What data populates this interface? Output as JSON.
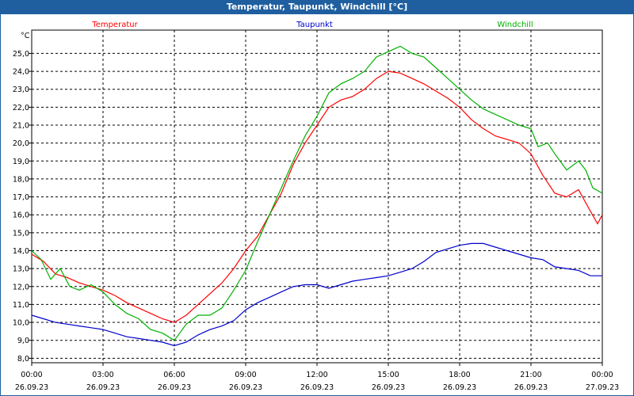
{
  "window": {
    "title": "Temperatur, Taupunkt, Windchill [°C]"
  },
  "chart_data": {
    "type": "line",
    "title": "Temperatur, Taupunkt, Windchill [°C]",
    "ylabel": "°C",
    "ylim": [
      7.75,
      26.3
    ],
    "yticks": [
      "8,0",
      "9,0",
      "10,0",
      "11,0",
      "12,0",
      "13,0",
      "14,0",
      "15,0",
      "16,0",
      "17,0",
      "18,0",
      "19,0",
      "20,0",
      "21,0",
      "22,0",
      "23,0",
      "24,0",
      "25,0"
    ],
    "xlim": [
      0,
      24
    ],
    "xticks": [
      {
        "time": "00:00",
        "date": "26.09.23"
      },
      {
        "time": "03:00",
        "date": "26.09.23"
      },
      {
        "time": "06:00",
        "date": "26.09.23"
      },
      {
        "time": "09:00",
        "date": "26.09.23"
      },
      {
        "time": "12:00",
        "date": "26.09.23"
      },
      {
        "time": "15:00",
        "date": "26.09.23"
      },
      {
        "time": "18:00",
        "date": "26.09.23"
      },
      {
        "time": "21:00",
        "date": "26.09.23"
      },
      {
        "time": "00:00",
        "date": "27.09.23"
      }
    ],
    "grid": true,
    "legend_position": "top",
    "series": [
      {
        "name": "Temperatur",
        "color": "#ff0000",
        "points": [
          [
            0,
            13.8
          ],
          [
            0.5,
            13.4
          ],
          [
            1,
            12.7
          ],
          [
            1.5,
            12.5
          ],
          [
            2,
            12.2
          ],
          [
            2.5,
            12.0
          ],
          [
            3,
            11.8
          ],
          [
            3.5,
            11.5
          ],
          [
            4,
            11.1
          ],
          [
            4.5,
            10.8
          ],
          [
            5,
            10.5
          ],
          [
            5.5,
            10.2
          ],
          [
            6,
            10.0
          ],
          [
            6.5,
            10.4
          ],
          [
            7,
            11.0
          ],
          [
            7.5,
            11.6
          ],
          [
            8,
            12.2
          ],
          [
            8.5,
            13.0
          ],
          [
            9,
            14.0
          ],
          [
            9.5,
            14.8
          ],
          [
            10,
            16.0
          ],
          [
            10.5,
            17.2
          ],
          [
            11,
            18.8
          ],
          [
            11.5,
            20.0
          ],
          [
            12,
            21.0
          ],
          [
            12.5,
            22.0
          ],
          [
            13,
            22.4
          ],
          [
            13.5,
            22.6
          ],
          [
            14,
            23.0
          ],
          [
            14.5,
            23.6
          ],
          [
            15,
            24.0
          ],
          [
            15.5,
            23.9
          ],
          [
            16,
            23.6
          ],
          [
            16.5,
            23.3
          ],
          [
            17,
            22.9
          ],
          [
            17.5,
            22.5
          ],
          [
            18,
            22.0
          ],
          [
            18.5,
            21.3
          ],
          [
            19,
            20.8
          ],
          [
            19.5,
            20.4
          ],
          [
            20,
            20.2
          ],
          [
            20.5,
            20.0
          ],
          [
            21,
            19.4
          ],
          [
            21.5,
            18.2
          ],
          [
            22,
            17.2
          ],
          [
            22.5,
            17.0
          ],
          [
            23,
            17.4
          ],
          [
            23.5,
            16.2
          ],
          [
            23.8,
            15.5
          ],
          [
            24,
            16.0
          ]
        ]
      },
      {
        "name": "Taupunkt",
        "color": "#0000cc",
        "points": [
          [
            0,
            10.4
          ],
          [
            0.5,
            10.2
          ],
          [
            1,
            10.0
          ],
          [
            1.5,
            9.9
          ],
          [
            2,
            9.8
          ],
          [
            2.5,
            9.7
          ],
          [
            3,
            9.6
          ],
          [
            3.5,
            9.4
          ],
          [
            4,
            9.2
          ],
          [
            4.5,
            9.1
          ],
          [
            5,
            9.0
          ],
          [
            5.5,
            8.9
          ],
          [
            6,
            8.7
          ],
          [
            6.5,
            8.9
          ],
          [
            7,
            9.3
          ],
          [
            7.5,
            9.6
          ],
          [
            8,
            9.8
          ],
          [
            8.5,
            10.1
          ],
          [
            9,
            10.7
          ],
          [
            9.5,
            11.1
          ],
          [
            10,
            11.4
          ],
          [
            10.5,
            11.7
          ],
          [
            11,
            12.0
          ],
          [
            11.5,
            12.1
          ],
          [
            12,
            12.1
          ],
          [
            12.5,
            11.9
          ],
          [
            13,
            12.1
          ],
          [
            13.5,
            12.3
          ],
          [
            14,
            12.4
          ],
          [
            14.5,
            12.5
          ],
          [
            15,
            12.6
          ],
          [
            15.5,
            12.8
          ],
          [
            16,
            13.0
          ],
          [
            16.5,
            13.4
          ],
          [
            17,
            13.9
          ],
          [
            17.5,
            14.1
          ],
          [
            18,
            14.3
          ],
          [
            18.5,
            14.4
          ],
          [
            19,
            14.4
          ],
          [
            19.5,
            14.2
          ],
          [
            20,
            14.0
          ],
          [
            20.5,
            13.8
          ],
          [
            21,
            13.6
          ],
          [
            21.5,
            13.5
          ],
          [
            22,
            13.1
          ],
          [
            22.5,
            13.0
          ],
          [
            23,
            12.9
          ],
          [
            23.5,
            12.6
          ],
          [
            24,
            12.6
          ]
        ]
      },
      {
        "name": "Windchill",
        "color": "#00b000",
        "points": [
          [
            0,
            14.0
          ],
          [
            0.4,
            13.5
          ],
          [
            0.8,
            12.4
          ],
          [
            1.2,
            13.0
          ],
          [
            1.6,
            12.0
          ],
          [
            2,
            11.8
          ],
          [
            2.5,
            12.1
          ],
          [
            3,
            11.7
          ],
          [
            3.5,
            11.0
          ],
          [
            4,
            10.5
          ],
          [
            4.5,
            10.2
          ],
          [
            5,
            9.6
          ],
          [
            5.5,
            9.4
          ],
          [
            6,
            9.0
          ],
          [
            6.5,
            9.9
          ],
          [
            7,
            10.4
          ],
          [
            7.5,
            10.4
          ],
          [
            8,
            10.8
          ],
          [
            8.5,
            11.8
          ],
          [
            9,
            12.9
          ],
          [
            9.5,
            14.5
          ],
          [
            10,
            16.0
          ],
          [
            10.5,
            17.5
          ],
          [
            11,
            19.0
          ],
          [
            11.5,
            20.4
          ],
          [
            12,
            21.5
          ],
          [
            12.5,
            22.8
          ],
          [
            13,
            23.3
          ],
          [
            13.5,
            23.6
          ],
          [
            14,
            24.0
          ],
          [
            14.5,
            24.8
          ],
          [
            15,
            25.1
          ],
          [
            15.5,
            25.4
          ],
          [
            16,
            25.0
          ],
          [
            16.5,
            24.8
          ],
          [
            17,
            24.2
          ],
          [
            17.5,
            23.6
          ],
          [
            18,
            23.0
          ],
          [
            18.5,
            22.4
          ],
          [
            19,
            21.9
          ],
          [
            19.5,
            21.6
          ],
          [
            20,
            21.3
          ],
          [
            20.5,
            21.0
          ],
          [
            21,
            20.8
          ],
          [
            21.3,
            19.8
          ],
          [
            21.7,
            20.0
          ],
          [
            22,
            19.4
          ],
          [
            22.5,
            18.5
          ],
          [
            23,
            19.0
          ],
          [
            23.3,
            18.5
          ],
          [
            23.6,
            17.5
          ],
          [
            24,
            17.2
          ]
        ]
      }
    ]
  }
}
